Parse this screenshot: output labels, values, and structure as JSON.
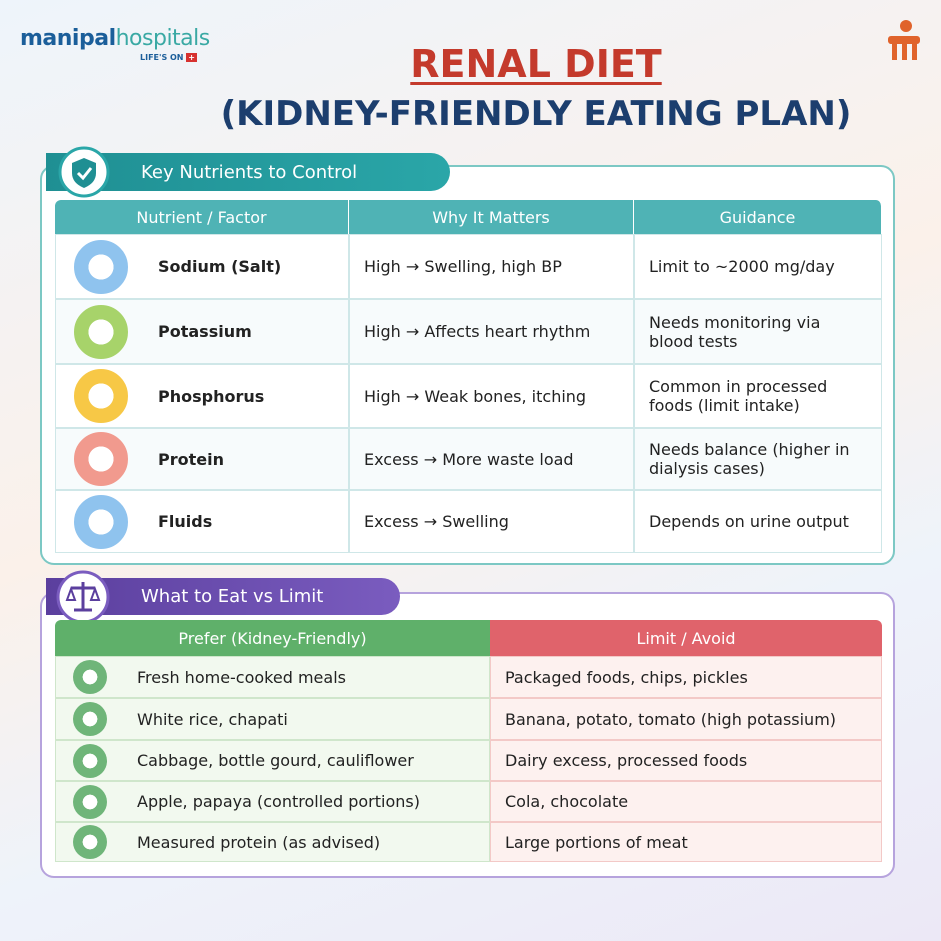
{
  "logo": {
    "name_first": "manipal",
    "name_second": "hospitals",
    "tagline": "LIFE'S ON"
  },
  "title": "RENAL DIET",
  "subtitle": "(KIDNEY-FRIENDLY EATING PLAN)",
  "nutrients": {
    "heading": "Key Nutrients to Control",
    "columns": [
      "Nutrient / Factor",
      "Why It Matters",
      "Guidance"
    ],
    "rows": [
      [
        "Sodium (Salt)",
        "High → Swelling, high BP",
        "Limit to ~2000 mg/day"
      ],
      [
        "Potassium",
        "High → Affects heart rhythm",
        "Needs monitoring via blood tests"
      ],
      [
        "Phosphorus",
        "High → Weak bones, itching",
        "Common in processed foods (limit intake)"
      ],
      [
        "Protein",
        "Excess → More waste load",
        "Needs balance (higher in dialysis cases)"
      ],
      [
        "Fluids",
        "Excess → Swelling",
        "Depends on urine output"
      ]
    ]
  },
  "eat": {
    "heading": "What to Eat vs Limit",
    "prefer_header": "Prefer (Kidney-Friendly)",
    "limit_header": "Limit / Avoid",
    "rows": [
      [
        "Fresh home-cooked meals",
        "Packaged foods, chips, pickles"
      ],
      [
        "White rice, chapati",
        "Banana, potato, tomato (high potassium)"
      ],
      [
        "Cabbage, bottle gourd, cauliflower",
        "Dairy excess, processed foods"
      ],
      [
        "Apple, papaya (controlled portions)",
        "Cola, chocolate"
      ],
      [
        "Measured protein (as advised)",
        "Large portions of meat"
      ]
    ]
  }
}
